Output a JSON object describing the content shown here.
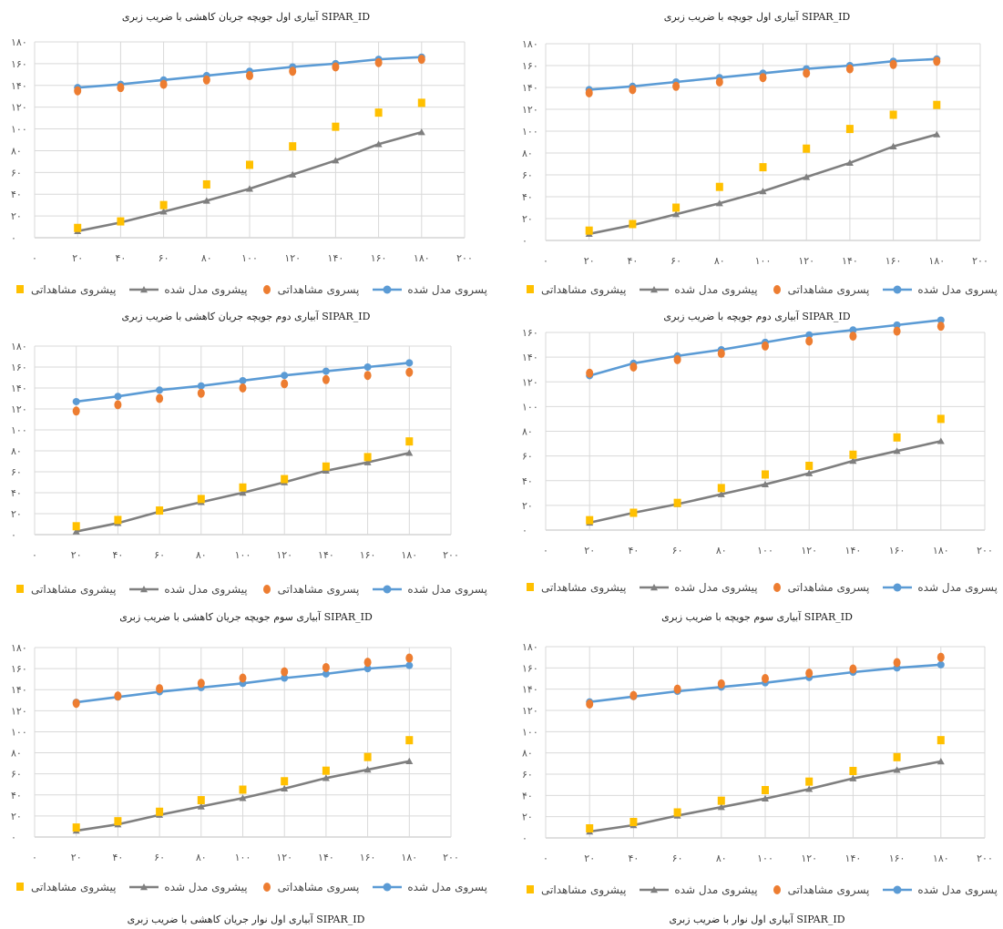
{
  "legend_labels": [
    "پسروی مدل شده",
    "پسروی مشاهداتی",
    "پیشروی مدل شده",
    "پیشروی مشاهداتی"
  ],
  "colors": {
    "advance_model": "#7f7f7f",
    "advance_obs": "#ffc000",
    "recession_model": "#5b9bd5",
    "recession_obs": "#ed7d31",
    "grid": "#d9d9d9",
    "axis": "#bfbfbf"
  },
  "charts": [
    {
      "id": "c1",
      "top_title": "آبیاری اول جویچه جریان کاهشی با ضریب زبری SIPAR_ID",
      "bottom_title": ""
    },
    {
      "id": "c2",
      "top_title": "آبیاری اول جویچه با ضریب زبری SIPAR_ID",
      "bottom_title": ""
    },
    {
      "id": "c3",
      "top_title": "آبیاری دوم جویچه جریان کاهشی با ضریب زبری SIPAR_ID",
      "bottom_title": ""
    },
    {
      "id": "c4",
      "top_title": "آبیاری دوم جویچه با ضریب زبری SIPAR_ID",
      "bottom_title": ""
    },
    {
      "id": "c5",
      "top_title": "آبیاری سوم جویچه جریان کاهشی با ضریب زبری SIPAR_ID",
      "bottom_title": "آبیاری اول نوار جریان کاهشی با ضریب زبری SIPAR_ID"
    },
    {
      "id": "c6",
      "top_title": "آبیاری سوم جویچه با ضریب زبری SIPAR_ID",
      "bottom_title": "آبیاری اول نوار با ضریب زبری SIPAR_ID"
    }
  ],
  "chart_data": [
    {
      "type": "line",
      "x": [
        20,
        40,
        60,
        80,
        100,
        120,
        140,
        160,
        180
      ],
      "xlim": [
        0,
        200
      ],
      "ylim": [
        0,
        180
      ],
      "x_ticks": [
        "۰",
        "۲۰",
        "۴۰",
        "۶۰",
        "۸۰",
        "۱۰۰",
        "۱۲۰",
        "۱۴۰",
        "۱۶۰",
        "۱۸۰",
        "۲۰۰"
      ],
      "y_ticks": [
        "۰",
        "۲۰",
        "۴۰",
        "۶۰",
        "۸۰",
        "۱۰۰",
        "۱۲۰",
        "۱۴۰",
        "۱۶۰",
        "۱۸۰"
      ],
      "series": [
        {
          "name": "پسروی مدل شده",
          "kind": "line-circle",
          "values": [
            138,
            141,
            145,
            149,
            153,
            157,
            160,
            164,
            166
          ]
        },
        {
          "name": "پسروی مشاهداتی",
          "kind": "dot",
          "values": [
            135,
            138,
            141,
            145,
            149,
            153,
            157,
            161,
            164
          ]
        },
        {
          "name": "پیشروی مدل شده",
          "kind": "line-triangle",
          "values": [
            6,
            14,
            24,
            34,
            45,
            58,
            71,
            86,
            97
          ]
        },
        {
          "name": "پیشروی مشاهداتی",
          "kind": "square",
          "values": [
            9,
            15,
            30,
            49,
            67,
            84,
            102,
            115,
            124
          ]
        }
      ]
    },
    {
      "type": "line",
      "x": [
        20,
        40,
        60,
        80,
        100,
        120,
        140,
        160,
        180
      ],
      "xlim": [
        0,
        200
      ],
      "ylim": [
        0,
        180
      ],
      "x_ticks": [
        "۰",
        "۲۰",
        "۴۰",
        "۶۰",
        "۸۰",
        "۱۰۰",
        "۱۲۰",
        "۱۴۰",
        "۱۶۰",
        "۱۸۰",
        "۲۰۰"
      ],
      "y_ticks": [
        "۰",
        "۲۰",
        "۴۰",
        "۶۰",
        "۸۰",
        "۱۰۰",
        "۱۲۰",
        "۱۴۰",
        "۱۶۰",
        "۱۸۰"
      ],
      "series": [
        {
          "name": "پسروی مدل شده",
          "kind": "line-circle",
          "values": [
            138,
            141,
            145,
            149,
            153,
            157,
            160,
            164,
            166
          ]
        },
        {
          "name": "پسروی مشاهداتی",
          "kind": "dot",
          "values": [
            135,
            138,
            141,
            145,
            149,
            153,
            157,
            161,
            164
          ]
        },
        {
          "name": "پیشروی مدل شده",
          "kind": "line-triangle",
          "values": [
            6,
            14,
            24,
            34,
            45,
            58,
            71,
            86,
            97
          ]
        },
        {
          "name": "پیشروی مشاهداتی",
          "kind": "square",
          "values": [
            9,
            15,
            30,
            49,
            67,
            84,
            102,
            115,
            124
          ]
        }
      ]
    },
    {
      "type": "line",
      "x": [
        20,
        40,
        60,
        80,
        100,
        120,
        140,
        160,
        180
      ],
      "xlim": [
        0,
        200
      ],
      "ylim": [
        0,
        180
      ],
      "x_ticks": [
        "۰",
        "۲۰",
        "۴۰",
        "۶۰",
        "۸۰",
        "۱۰۰",
        "۱۲۰",
        "۱۴۰",
        "۱۶۰",
        "۱۸۰",
        "۲۰۰"
      ],
      "y_ticks": [
        "۰",
        "۲۰",
        "۴۰",
        "۶۰",
        "۸۰",
        "۱۰۰",
        "۱۲۰",
        "۱۴۰",
        "۱۶۰",
        "۱۸۰"
      ],
      "series": [
        {
          "name": "پسروی مدل شده",
          "kind": "line-circle",
          "values": [
            127,
            132,
            138,
            142,
            147,
            152,
            156,
            160,
            164
          ]
        },
        {
          "name": "پسروی مشاهداتی",
          "kind": "dot",
          "values": [
            118,
            124,
            130,
            135,
            140,
            144,
            148,
            152,
            155
          ]
        },
        {
          "name": "پیشروی مدل شده",
          "kind": "line-triangle",
          "values": [
            3,
            11,
            22,
            31,
            40,
            50,
            61,
            69,
            78
          ]
        },
        {
          "name": "پیشروی مشاهداتی",
          "kind": "square",
          "values": [
            8,
            14,
            23,
            34,
            45,
            53,
            65,
            74,
            89
          ]
        }
      ]
    },
    {
      "type": "line",
      "x": [
        20,
        40,
        60,
        80,
        100,
        120,
        140,
        160,
        180
      ],
      "xlim": [
        0,
        200
      ],
      "ylim": [
        0,
        160
      ],
      "x_ticks": [
        "۰",
        "۲۰",
        "۴۰",
        "۶۰",
        "۸۰",
        "۱۰۰",
        "۱۲۰",
        "۱۴۰",
        "۱۶۰",
        "۱۸۰",
        "۲۰۰"
      ],
      "y_ticks": [
        "۰",
        "۲۰",
        "۴۰",
        "۶۰",
        "۸۰",
        "۱۰۰",
        "۱۲۰",
        "۱۴۰",
        "۱۶۰"
      ],
      "series": [
        {
          "name": "پسروی مدل شده",
          "kind": "line-circle",
          "values": [
            125,
            135,
            141,
            146,
            152,
            158,
            162,
            166,
            170
          ]
        },
        {
          "name": "پسروی مشاهداتی",
          "kind": "dot",
          "values": [
            127,
            132,
            138,
            143,
            149,
            153,
            157,
            161,
            165
          ]
        },
        {
          "name": "پیشروی مدل شده",
          "kind": "line-triangle",
          "values": [
            6,
            14,
            21,
            29,
            37,
            46,
            56,
            64,
            72
          ]
        },
        {
          "name": "پیشروی مشاهداتی",
          "kind": "square",
          "values": [
            8,
            14,
            22,
            34,
            45,
            52,
            61,
            75,
            90
          ]
        }
      ]
    },
    {
      "type": "line",
      "x": [
        20,
        40,
        60,
        80,
        100,
        120,
        140,
        160,
        180
      ],
      "xlim": [
        0,
        200
      ],
      "ylim": [
        0,
        180
      ],
      "x_ticks": [
        "۰",
        "۲۰",
        "۴۰",
        "۶۰",
        "۸۰",
        "۱۰۰",
        "۱۲۰",
        "۱۴۰",
        "۱۶۰",
        "۱۸۰",
        "۲۰۰"
      ],
      "y_ticks": [
        "۰",
        "۲۰",
        "۴۰",
        "۶۰",
        "۸۰",
        "۱۰۰",
        "۱۲۰",
        "۱۴۰",
        "۱۶۰",
        "۱۸۰"
      ],
      "series": [
        {
          "name": "پسروی مدل شده",
          "kind": "line-circle",
          "values": [
            128,
            133,
            138,
            142,
            146,
            151,
            155,
            160,
            163
          ]
        },
        {
          "name": "پسروی مشاهداتی",
          "kind": "dot",
          "values": [
            127,
            134,
            141,
            146,
            151,
            157,
            161,
            166,
            170
          ]
        },
        {
          "name": "پیشروی مدل شده",
          "kind": "line-triangle",
          "values": [
            6,
            12,
            21,
            29,
            37,
            46,
            56,
            64,
            72
          ]
        },
        {
          "name": "پیشروی مشاهداتی",
          "kind": "square",
          "values": [
            9,
            15,
            24,
            35,
            45,
            53,
            63,
            76,
            92
          ]
        }
      ]
    },
    {
      "type": "line",
      "x": [
        20,
        40,
        60,
        80,
        100,
        120,
        140,
        160,
        180
      ],
      "xlim": [
        0,
        200
      ],
      "ylim": [
        0,
        180
      ],
      "x_ticks": [
        "۰",
        "۲۰",
        "۴۰",
        "۶۰",
        "۸۰",
        "۱۰۰",
        "۱۲۰",
        "۱۴۰",
        "۱۶۰",
        "۱۸۰",
        "۲۰۰"
      ],
      "y_ticks": [
        "۰",
        "۲۰",
        "۴۰",
        "۶۰",
        "۸۰",
        "۱۰۰",
        "۱۲۰",
        "۱۴۰",
        "۱۶۰",
        "۱۸۰"
      ],
      "series": [
        {
          "name": "پسروی مدل شده",
          "kind": "line-circle",
          "values": [
            128,
            133,
            138,
            142,
            146,
            151,
            156,
            160,
            163
          ]
        },
        {
          "name": "پسروی مشاهداتی",
          "kind": "dot",
          "values": [
            126,
            134,
            140,
            145,
            150,
            155,
            159,
            165,
            170
          ]
        },
        {
          "name": "پیشروی مدل شده",
          "kind": "line-triangle",
          "values": [
            6,
            12,
            21,
            29,
            37,
            46,
            56,
            64,
            72
          ]
        },
        {
          "name": "پیشروی مشاهداتی",
          "kind": "square",
          "values": [
            9,
            15,
            24,
            35,
            45,
            53,
            63,
            76,
            92
          ]
        }
      ]
    }
  ]
}
